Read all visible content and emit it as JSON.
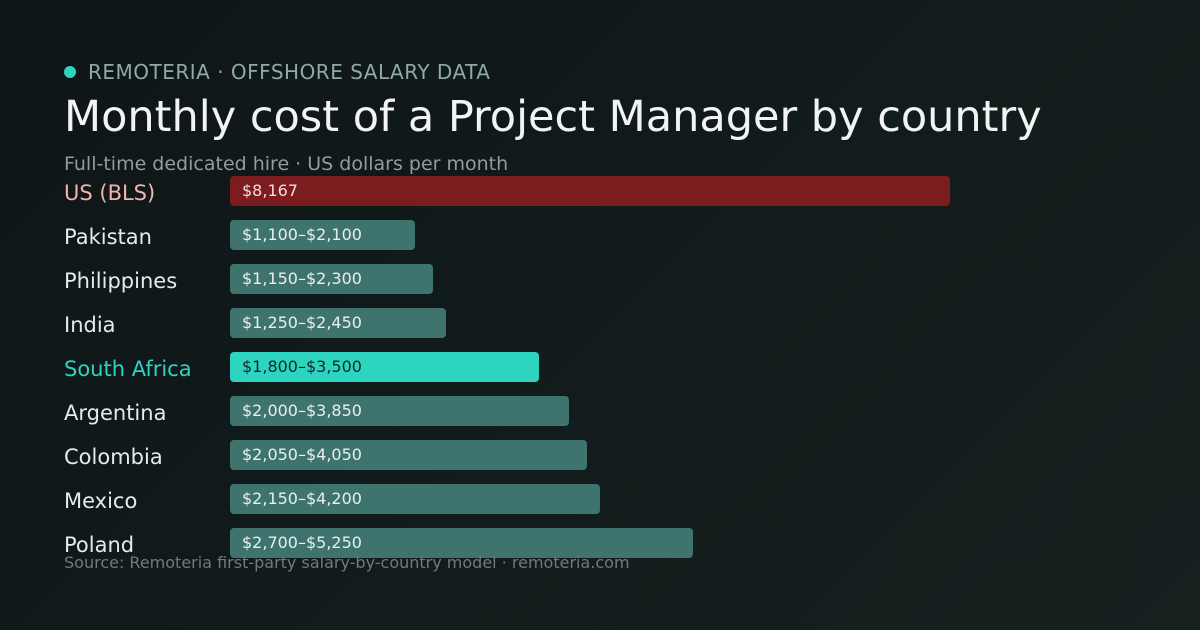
{
  "header": {
    "brand": "REMOTERIA · OFFSHORE SALARY DATA",
    "title": "Monthly cost of a Project Manager by country",
    "subtitle": "Full-time dedicated hire · US dollars per month"
  },
  "footer": {
    "source": "Source: Remoteria first-party salary-by-country model · remoteria.com"
  },
  "colors": {
    "benchmark": "#7d1c1e",
    "highlight": "#2dd4bf",
    "default": "#3f736e",
    "label_benchmark": "#f0b3ae",
    "label_highlight": "#2dd4bf",
    "label_default": "#e6ebea"
  },
  "chart_data": {
    "type": "bar",
    "orientation": "horizontal",
    "title": "Monthly cost of a Project Manager by country",
    "xlabel": "",
    "ylabel": "",
    "bars": [
      {
        "category": "US (BLS)",
        "low": 8167,
        "high": 8167,
        "label": "$8,167",
        "role": "benchmark"
      },
      {
        "category": "Pakistan",
        "low": 1100,
        "high": 2100,
        "label": "$1,100–$2,100",
        "role": "default"
      },
      {
        "category": "Philippines",
        "low": 1150,
        "high": 2300,
        "label": "$1,150–$2,300",
        "role": "default"
      },
      {
        "category": "India",
        "low": 1250,
        "high": 2450,
        "label": "$1,250–$2,450",
        "role": "default"
      },
      {
        "category": "South Africa",
        "low": 1800,
        "high": 3500,
        "label": "$1,800–$3,500",
        "role": "highlight"
      },
      {
        "category": "Argentina",
        "low": 2000,
        "high": 3850,
        "label": "$2,000–$3,850",
        "role": "default"
      },
      {
        "category": "Colombia",
        "low": 2050,
        "high": 4050,
        "label": "$2,050–$4,050",
        "role": "default"
      },
      {
        "category": "Mexico",
        "low": 2150,
        "high": 4200,
        "label": "$2,150–$4,200",
        "role": "default"
      },
      {
        "category": "Poland",
        "low": 2700,
        "high": 5250,
        "label": "$2,700–$5,250",
        "role": "default"
      }
    ]
  }
}
